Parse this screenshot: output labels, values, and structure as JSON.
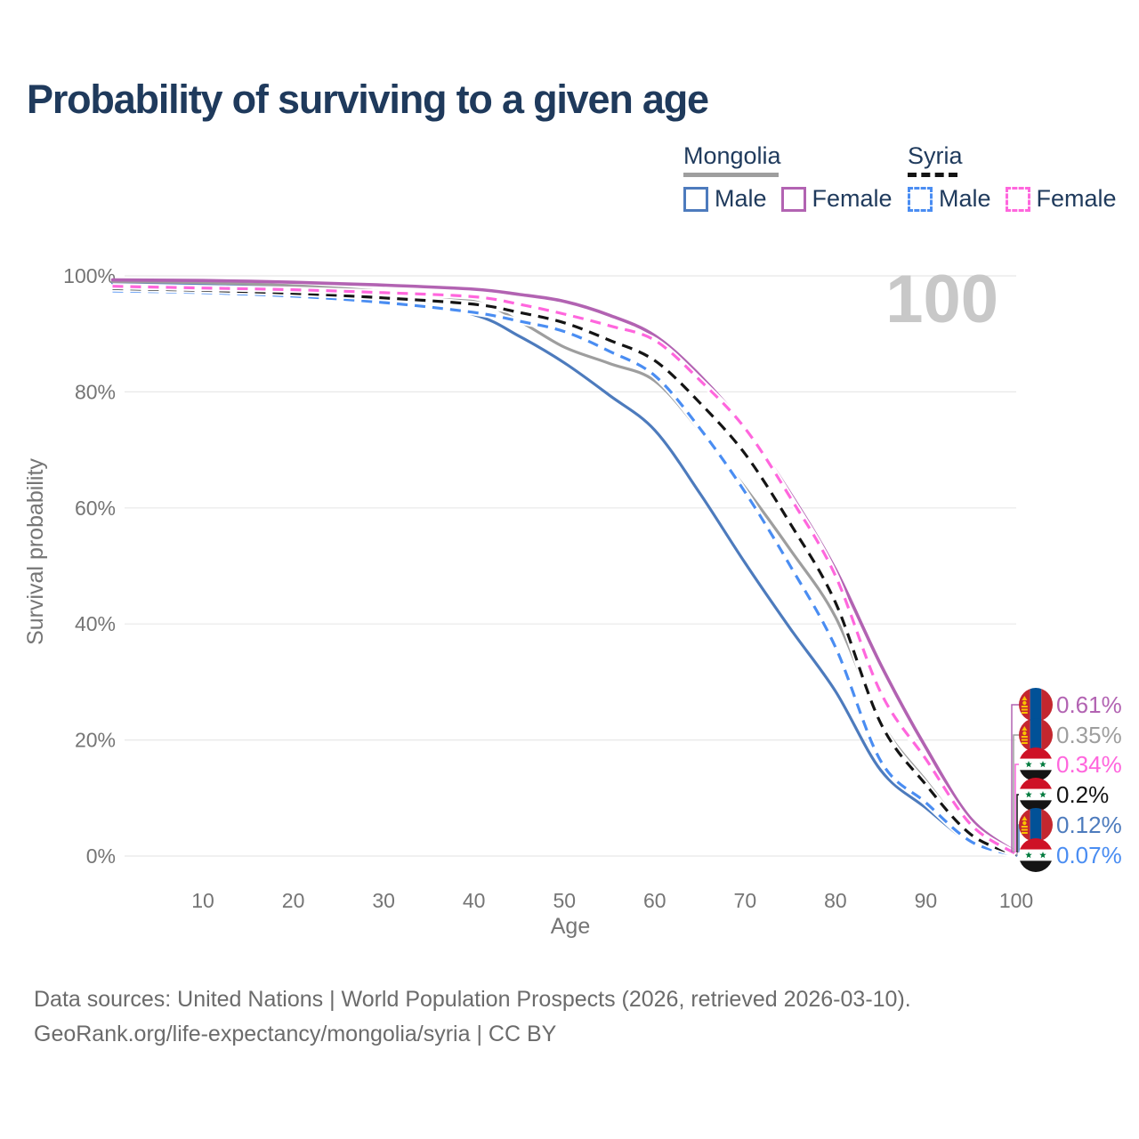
{
  "header": {
    "title": "Probability of surviving to a given age"
  },
  "legend": {
    "groups": [
      {
        "name": "Mongolia",
        "line_style": "solid",
        "underline_color": "#9e9e9e",
        "underline_width": 107,
        "items": [
          {
            "label": "Male",
            "color": "#4d7bbd"
          },
          {
            "label": "Female",
            "color": "#b263b2"
          }
        ]
      },
      {
        "name": "Syria",
        "line_style": "dashed",
        "underline_color": "#141414",
        "underline_width": 56,
        "items": [
          {
            "label": "Male",
            "color": "#4a8df2"
          },
          {
            "label": "Female",
            "color": "#ff66dd"
          }
        ]
      }
    ]
  },
  "chart_data": {
    "type": "line",
    "title": "Probability of surviving to a given age",
    "xlabel": "Age",
    "ylabel": "Survival probability",
    "xlim": [
      0,
      100
    ],
    "ylim": [
      0,
      1
    ],
    "grid": "horizontal",
    "age_counter": "100",
    "x_ticks": [
      "10",
      "20",
      "30",
      "40",
      "50",
      "60",
      "70",
      "80",
      "90",
      "100"
    ],
    "x_tick_values": [
      10,
      20,
      30,
      40,
      50,
      60,
      70,
      80,
      90,
      100
    ],
    "y_ticks": [
      "0%",
      "20%",
      "40%",
      "60%",
      "80%",
      "100%"
    ],
    "y_tick_values": [
      0,
      0.2,
      0.4,
      0.6,
      0.8,
      1.0
    ],
    "x": [
      0,
      10,
      20,
      30,
      40,
      45,
      50,
      55,
      60,
      65,
      70,
      75,
      80,
      85,
      90,
      95,
      100
    ],
    "series": [
      {
        "id": "mongolia-male",
        "name": "Mongolia Male",
        "country": "Mongolia",
        "sex": "Male",
        "flag": "mongolia",
        "color": "#4d7bbd",
        "dashed": false,
        "values": [
          0.988,
          0.985,
          0.978,
          0.962,
          0.933,
          0.896,
          0.85,
          0.794,
          0.734,
          0.625,
          0.505,
          0.392,
          0.284,
          0.148,
          0.083,
          0.023,
          0.0012
        ]
      },
      {
        "id": "mongolia-total",
        "name": "Mongolia",
        "country": "Mongolia",
        "sex": "Both",
        "flag": "mongolia",
        "color": "#9e9e9e",
        "dashed": false,
        "values": [
          0.99,
          0.988,
          0.983,
          0.973,
          0.956,
          0.922,
          0.877,
          0.849,
          0.819,
          0.733,
          0.635,
          0.528,
          0.412,
          0.233,
          0.13,
          0.038,
          0.0035
        ]
      },
      {
        "id": "mongolia-female",
        "name": "Mongolia Female",
        "country": "Mongolia",
        "sex": "Female",
        "flag": "mongolia",
        "color": "#b263b2",
        "dashed": false,
        "values": [
          0.993,
          0.992,
          0.989,
          0.984,
          0.977,
          0.968,
          0.956,
          0.932,
          0.897,
          0.828,
          0.739,
          0.625,
          0.494,
          0.33,
          0.187,
          0.064,
          0.0061
        ]
      },
      {
        "id": "syria-male",
        "name": "Syria Male",
        "country": "Syria",
        "sex": "Male",
        "flag": "syria",
        "color": "#4a8df2",
        "dashed": true,
        "values": [
          0.974,
          0.971,
          0.965,
          0.954,
          0.937,
          0.922,
          0.904,
          0.87,
          0.828,
          0.737,
          0.627,
          0.5,
          0.36,
          0.164,
          0.092,
          0.025,
          0.0007
        ]
      },
      {
        "id": "syria-total",
        "name": "Syria",
        "country": "Syria",
        "sex": "Both",
        "flag": "syria",
        "color": "#141414",
        "dashed": true,
        "values": [
          0.978,
          0.975,
          0.97,
          0.962,
          0.951,
          0.937,
          0.919,
          0.889,
          0.854,
          0.781,
          0.693,
          0.573,
          0.437,
          0.229,
          0.123,
          0.037,
          0.002
        ]
      },
      {
        "id": "syria-female",
        "name": "Syria Female",
        "country": "Syria",
        "sex": "Female",
        "flag": "syria",
        "color": "#ff66dd",
        "dashed": true,
        "values": [
          0.982,
          0.979,
          0.976,
          0.971,
          0.964,
          0.951,
          0.934,
          0.914,
          0.889,
          0.82,
          0.737,
          0.618,
          0.483,
          0.282,
          0.167,
          0.054,
          0.0034
        ]
      }
    ],
    "end_labels": [
      {
        "series": "mongolia-female",
        "text": "0.61%"
      },
      {
        "series": "mongolia-total",
        "text": "0.35%"
      },
      {
        "series": "syria-female",
        "text": "0.34%"
      },
      {
        "series": "syria-total",
        "text": "0.2%"
      },
      {
        "series": "mongolia-male",
        "text": "0.12%"
      },
      {
        "series": "syria-male",
        "text": "0.07%"
      }
    ],
    "colors": {
      "title_text": "#1f3a5c",
      "tick_text": "#757575",
      "gridline": "#e8e8e8",
      "watermark": "#c8c8c8",
      "footer_text": "#6b6b6b",
      "mongolia_flag_red": "#c4272f",
      "mongolia_flag_blue": "#015197",
      "mongolia_flag_gold": "#f8c300",
      "syria_flag_red": "#ce1126",
      "syria_flag_green": "#007a3d",
      "syria_flag_black": "#141414"
    }
  },
  "footer": {
    "line1": "Data sources: United Nations | World Population Prospects (2026, retrieved 2026-03-10).",
    "line2": "GeoRank.org/life-expectancy/mongolia/syria | CC BY"
  }
}
